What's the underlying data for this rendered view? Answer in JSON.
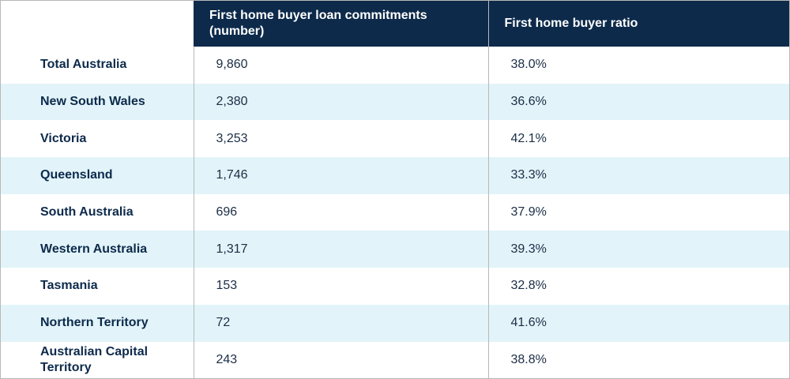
{
  "table": {
    "header": [
      "",
      "First home buyer loan commitments (number)",
      "First home buyer ratio"
    ],
    "rows": [
      [
        "Total Australia",
        "9,860",
        "38.0%"
      ],
      [
        "New South Wales",
        "2,380",
        "36.6%"
      ],
      [
        "Victoria",
        "3,253",
        "42.1%"
      ],
      [
        "Queensland",
        "1,746",
        "33.3%"
      ],
      [
        "South Australia",
        "696",
        "37.9%"
      ],
      [
        "Western Australia",
        "1,317",
        "39.3%"
      ],
      [
        "Tasmania",
        "153",
        "32.8%"
      ],
      [
        "Northern Territory",
        "72",
        "41.6%"
      ],
      [
        "Australian Capital Territory",
        "243",
        "38.8%"
      ]
    ]
  }
}
